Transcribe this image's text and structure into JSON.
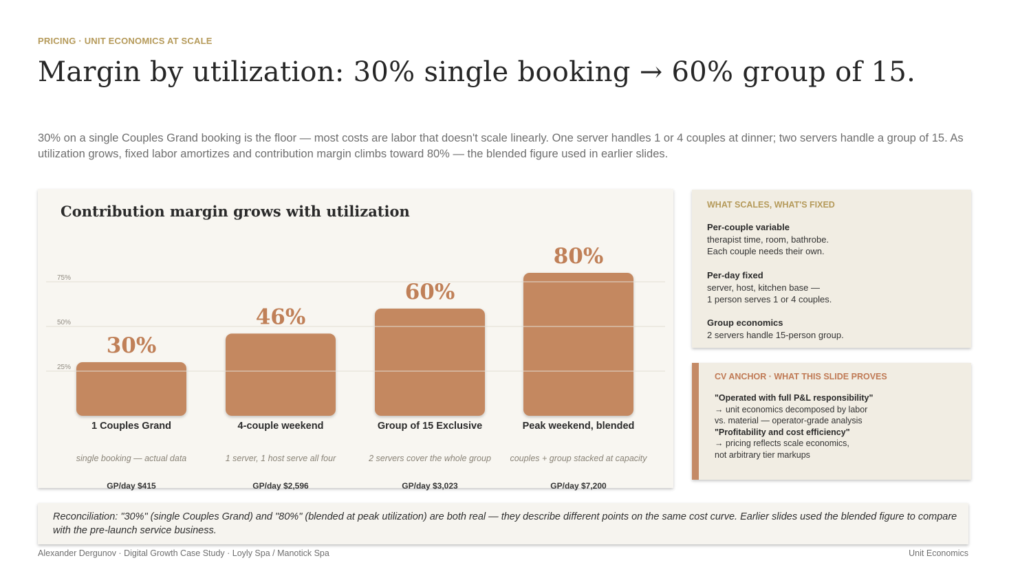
{
  "header": {
    "kicker": "PRICING · UNIT ECONOMICS AT SCALE",
    "title": "Margin by utilization: 30% single booking → 60% group of 15.",
    "lede": "30% on a single Couples Grand booking is the floor — most costs are labor that doesn't scale linearly. One server handles 1 or 4 couples at dinner; two servers handle a group of 15. As utilization grows, fixed labor amortizes and contribution margin climbs toward 80% — the blended figure used in earlier slides."
  },
  "chart_data": {
    "type": "bar",
    "title": "Contribution margin grows with utilization",
    "categories": [
      "1 Couples Grand",
      "4-couple weekend",
      "Group of 15 Exclusive",
      "Peak weekend, blended"
    ],
    "subtitles": [
      "single booking — actual data",
      "1 server, 1 host serve all four",
      "2 servers cover the whole group",
      "couples + group stacked at capacity"
    ],
    "gp_per_day": [
      "GP/day  $415",
      "GP/day  $2,596",
      "GP/day  $3,023",
      "GP/day  $7,200"
    ],
    "values": [
      30,
      46,
      60,
      80
    ],
    "value_labels": [
      "30%",
      "46%",
      "60%",
      "80%"
    ],
    "yticks": [
      25,
      50,
      75
    ],
    "ytick_labels": [
      "25%",
      "50%",
      "75%"
    ],
    "ylim": [
      0,
      80
    ],
    "grid": true,
    "bar_color": "#c48861",
    "label_color": "#c08058"
  },
  "sidebar": {
    "heading": "WHAT SCALES, WHAT'S FIXED",
    "blocks": [
      {
        "title": "Per-couple variable",
        "line1": "therapist time, room, bathrobe.",
        "line2": "Each couple needs their own."
      },
      {
        "title": "Per-day fixed",
        "line1": "server, host, kitchen base —",
        "line2": "1 person serves 1 or 4 couples."
      },
      {
        "title": "Group economics",
        "line1": "2 servers handle 15-person group.",
        "line2": ""
      }
    ]
  },
  "anchor": {
    "heading": "CV ANCHOR · WHAT THIS SLIDE PROVES",
    "quote1": "\"Operated with full P&L responsibility\"",
    "line1a": "→ unit economics decomposed by labor",
    "line1b": "vs. material — operator-grade analysis",
    "quote2": "\"Profitability and cost efficiency\"",
    "line2a": "→ pricing reflects scale economics,",
    "line2b": "not arbitrary tier markups"
  },
  "reconciliation": "Reconciliation: \"30%\" (single Couples Grand) and \"80%\" (blended at peak utilization) are both real — they describe different points on the same cost curve. Earlier slides used the blended figure to compare with the pre-launch service business.",
  "footer": {
    "left": "Alexander Dergunov · Digital Growth Case Study · Loyly Spa / Manotick Spa",
    "right": "Unit Economics"
  }
}
